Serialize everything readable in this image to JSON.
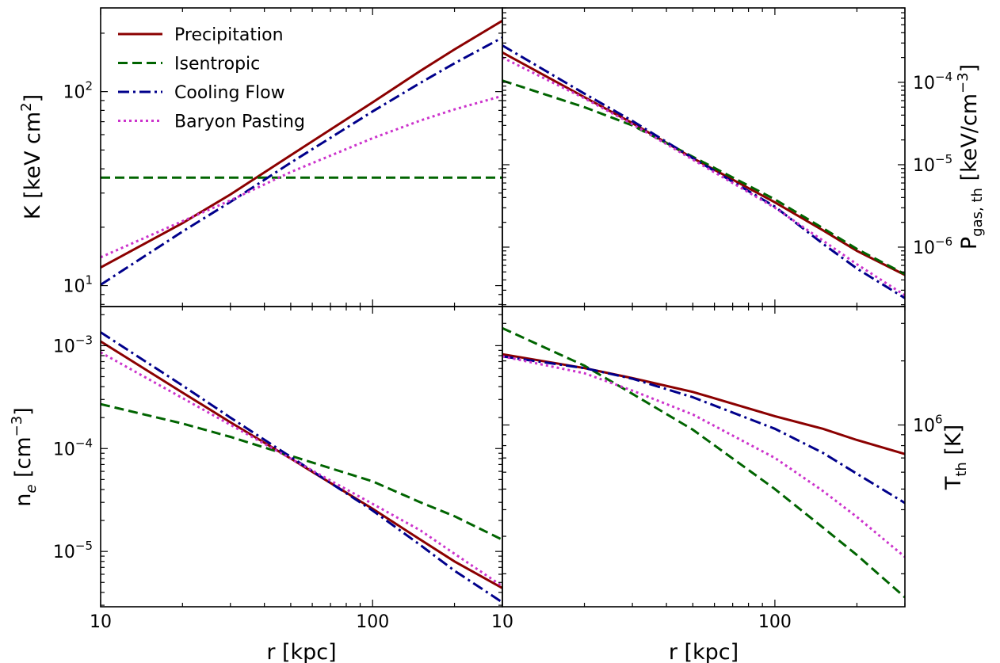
{
  "legend": [
    {
      "name": "Precipitation",
      "color": "#8b0000",
      "dash": "solid"
    },
    {
      "name": "Isentropic",
      "color": "#006400",
      "dash": "dashed"
    },
    {
      "name": "Cooling Flow",
      "color": "#00008b",
      "dash": "dashdot"
    },
    {
      "name": "Baryon Pasting",
      "color": "#cc33cc",
      "dash": "dotted"
    }
  ],
  "chart_data": [
    {
      "type": "line",
      "panel": "top-left",
      "xlabel": "",
      "ylabel": "K [keV cm^2]",
      "xscale": "log",
      "yscale": "log",
      "xlim": [
        10,
        300
      ],
      "ylim": [
        7.8,
        270
      ],
      "xticks": [],
      "yticks": [
        {
          "v": 10,
          "label": "10",
          "sup": "1"
        },
        {
          "v": 100,
          "label": "10",
          "sup": "2"
        }
      ],
      "series": [
        {
          "name": "Precipitation",
          "x": [
            10,
            20,
            30,
            50,
            100,
            150,
            200,
            300
          ],
          "y": [
            12.4,
            21,
            29.5,
            47,
            88,
            128,
            165,
            232
          ]
        },
        {
          "name": "Isentropic",
          "x": [
            10,
            300
          ],
          "y": [
            36,
            36
          ]
        },
        {
          "name": "Cooling Flow",
          "x": [
            10,
            20,
            30,
            50,
            100,
            150,
            200,
            300
          ],
          "y": [
            10.1,
            19,
            27,
            43,
            79,
            111,
            140,
            190
          ]
        },
        {
          "name": "Baryon Pasting",
          "x": [
            10,
            20,
            30,
            50,
            100,
            150,
            200,
            300
          ],
          "y": [
            14,
            21.5,
            27.5,
            38.5,
            57.5,
            71,
            81,
            95
          ]
        }
      ]
    },
    {
      "type": "line",
      "panel": "top-right",
      "xlabel": "",
      "ylabel": "P_gas,th [keV/cm^-3]",
      "xscale": "log",
      "yscale": "log",
      "xlim": [
        10,
        300
      ],
      "ylim": [
        1.9e-07,
        0.0008
      ],
      "xticks": [],
      "yticks": [
        {
          "v": 1e-06,
          "label": "10",
          "sup": "−6"
        },
        {
          "v": 1e-05,
          "label": "10",
          "sup": "−5"
        },
        {
          "v": 0.0001,
          "label": "10",
          "sup": "−4"
        }
      ],
      "series": [
        {
          "name": "Precipitation",
          "x": [
            10,
            20,
            30,
            50,
            100,
            150,
            200,
            300
          ],
          "y": [
            0.00023,
            6.6e-05,
            3.2e-05,
            1.2e-05,
            3.5e-06,
            1.6e-06,
            9e-07,
            4.6e-07
          ]
        },
        {
          "name": "Isentropic",
          "x": [
            10,
            20,
            30,
            50,
            100,
            150,
            200,
            300
          ],
          "y": [
            0.000105,
            5e-05,
            3e-05,
            1.25e-05,
            3.8e-06,
            1.7e-06,
            9.5e-07,
            4.7e-07
          ]
        },
        {
          "name": "Cooling Flow",
          "x": [
            10,
            20,
            30,
            50,
            100,
            150,
            200,
            300
          ],
          "y": [
            0.00028,
            7.3e-05,
            3.4e-05,
            1.2e-05,
            3.1e-06,
            1.1e-06,
            5.5e-07,
            2.4e-07
          ]
        },
        {
          "name": "Baryon Pasting",
          "x": [
            10,
            20,
            30,
            50,
            100,
            150,
            200,
            300
          ],
          "y": [
            0.0002,
            6.4e-05,
            3.1e-05,
            1.15e-05,
            3e-06,
            1.2e-06,
            6.2e-07,
            2.6e-07
          ]
        }
      ]
    },
    {
      "type": "line",
      "panel": "bottom-left",
      "xlabel": "r [kpc]",
      "ylabel": "n_e [cm^-3]",
      "xscale": "log",
      "yscale": "log",
      "xlim": [
        10,
        300
      ],
      "ylim": [
        2.9e-06,
        0.0024
      ],
      "xticks": [
        {
          "v": 10,
          "label": "10"
        },
        {
          "v": 100,
          "label": "100"
        }
      ],
      "yticks": [
        {
          "v": 1e-05,
          "label": "10",
          "sup": "−5"
        },
        {
          "v": 0.0001,
          "label": "10",
          "sup": "−4"
        },
        {
          "v": 0.001,
          "label": "10",
          "sup": "−3"
        }
      ],
      "series": [
        {
          "name": "Precipitation",
          "x": [
            10,
            20,
            30,
            50,
            100,
            150,
            200,
            300
          ],
          "y": [
            0.0011,
            0.00035,
            0.00018,
            8e-05,
            2.6e-05,
            1.3e-05,
            8e-06,
            4.4e-06
          ]
        },
        {
          "name": "Isentropic",
          "x": [
            10,
            20,
            30,
            50,
            100,
            150,
            200,
            300
          ],
          "y": [
            0.00027,
            0.000175,
            0.00013,
            8.5e-05,
            4.8e-05,
            3e-05,
            2.2e-05,
            1.3e-05
          ]
        },
        {
          "name": "Cooling Flow",
          "x": [
            10,
            20,
            30,
            50,
            100,
            150,
            200,
            300
          ],
          "y": [
            0.00135,
            0.00041,
            0.0002,
            8.3e-05,
            2.5e-05,
            1.15e-05,
            6.5e-06,
            3.2e-06
          ]
        },
        {
          "name": "Baryon Pasting",
          "x": [
            10,
            20,
            30,
            50,
            100,
            150,
            200,
            300
          ],
          "y": [
            0.00086,
            0.00031,
            0.00017,
            8e-05,
            2.9e-05,
            1.6e-05,
            9.5e-06,
            4.6e-06
          ]
        }
      ]
    },
    {
      "type": "line",
      "panel": "bottom-right",
      "xlabel": "r [kpc]",
      "ylabel": "T_th [K]",
      "xscale": "log",
      "yscale": "log",
      "xlim": [
        10,
        300
      ],
      "ylim": [
        140000.0,
        3600000.0
      ],
      "xticks": [
        {
          "v": 10,
          "label": "10"
        },
        {
          "v": 100,
          "label": "100"
        }
      ],
      "yticks": [
        {
          "v": 1000000.0,
          "label": "10",
          "sup": "6"
        }
      ],
      "series": [
        {
          "name": "Precipitation",
          "x": [
            10,
            20,
            30,
            50,
            100,
            150,
            200,
            300
          ],
          "y": [
            2150000.0,
            1850000.0,
            1660000.0,
            1430000.0,
            1100000.0,
            960000.0,
            850000.0,
            730000.0
          ]
        },
        {
          "name": "Isentropic",
          "x": [
            10,
            20,
            30,
            50,
            100,
            150,
            200,
            300
          ],
          "y": [
            2850000.0,
            1900000.0,
            1400000.0,
            950000.0,
            500000.0,
            330000.0,
            245000.0,
            155000.0
          ]
        },
        {
          "name": "Cooling Flow",
          "x": [
            10,
            20,
            30,
            50,
            100,
            150,
            200,
            300
          ],
          "y": [
            2100000.0,
            1850000.0,
            1650000.0,
            1350000.0,
            960000.0,
            740000.0,
            590000.0,
            430000.0
          ]
        },
        {
          "name": "Baryon Pasting",
          "x": [
            10,
            20,
            30,
            50,
            100,
            150,
            200,
            300
          ],
          "y": [
            2100000.0,
            1750000.0,
            1450000.0,
            1120000.0,
            700000.0,
            490000.0,
            370000.0,
            240000.0
          ]
        }
      ]
    }
  ]
}
